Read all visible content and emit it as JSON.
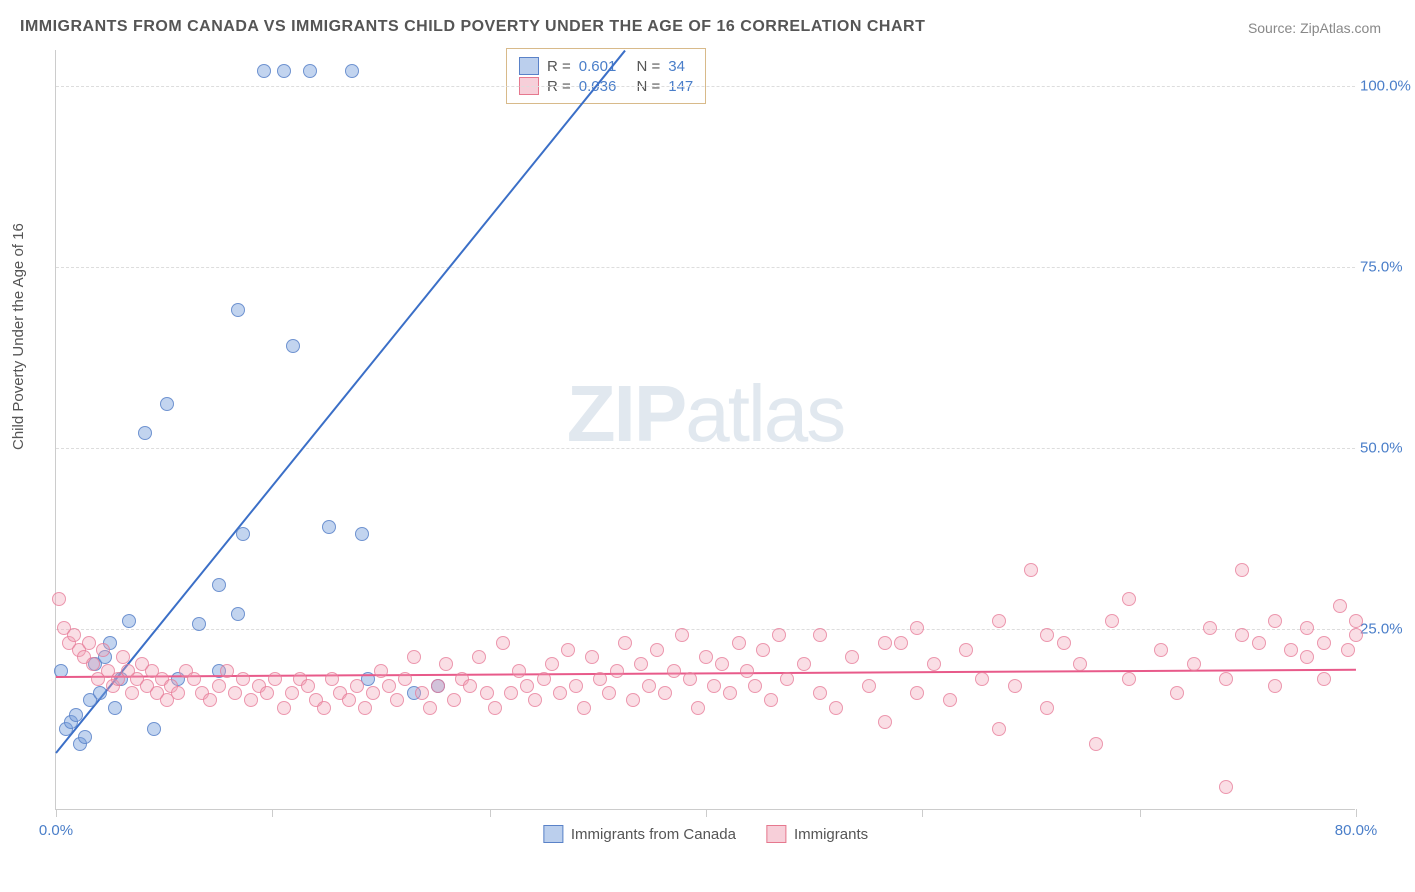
{
  "title": "IMMIGRANTS FROM CANADA VS IMMIGRANTS CHILD POVERTY UNDER THE AGE OF 16 CORRELATION CHART",
  "source_label": "Source:",
  "source_name": "ZipAtlas.com",
  "y_axis_label": "Child Poverty Under the Age of 16",
  "watermark_bold": "ZIP",
  "watermark_light": "atlas",
  "chart": {
    "type": "scatter_with_regression",
    "background_color": "#ffffff",
    "grid_color": "#dddddd",
    "axis_color": "#cccccc",
    "xlim": [
      0,
      80
    ],
    "ylim": [
      0,
      105
    ],
    "y_ticks": [
      {
        "value": 25,
        "label": "25.0%"
      },
      {
        "value": 50,
        "label": "50.0%"
      },
      {
        "value": 75,
        "label": "75.0%"
      },
      {
        "value": 100,
        "label": "100.0%"
      }
    ],
    "x_ticks": [
      {
        "value": 0,
        "label": "0.0%"
      },
      {
        "value": 13.3,
        "label": ""
      },
      {
        "value": 26.7,
        "label": ""
      },
      {
        "value": 40,
        "label": ""
      },
      {
        "value": 53.3,
        "label": ""
      },
      {
        "value": 66.7,
        "label": ""
      },
      {
        "value": 80,
        "label": "80.0%"
      }
    ],
    "series": [
      {
        "name": "Immigrants from Canada",
        "color_fill": "rgba(120,160,220,0.45)",
        "color_stroke": "#5a82c8",
        "marker_size": 14,
        "R": "0.601",
        "N": "34",
        "regression": {
          "x1": 0,
          "y1": 8,
          "x2": 35,
          "y2": 105,
          "color": "#3b6fc7"
        },
        "points": [
          [
            0.3,
            19
          ],
          [
            0.6,
            11
          ],
          [
            0.9,
            12
          ],
          [
            1.2,
            13
          ],
          [
            1.5,
            9
          ],
          [
            1.8,
            10
          ],
          [
            2.1,
            15
          ],
          [
            2.4,
            20
          ],
          [
            2.7,
            16
          ],
          [
            3.0,
            21
          ],
          [
            3.3,
            23
          ],
          [
            3.6,
            14
          ],
          [
            4.0,
            18
          ],
          [
            4.5,
            26
          ],
          [
            5.5,
            52
          ],
          [
            6.8,
            56
          ],
          [
            6.0,
            11
          ],
          [
            7.5,
            18
          ],
          [
            8.8,
            25.5
          ],
          [
            10.0,
            31
          ],
          [
            11.2,
            69
          ],
          [
            11.2,
            27
          ],
          [
            11.5,
            38
          ],
          [
            10.0,
            19
          ],
          [
            12.8,
            102
          ],
          [
            14.0,
            102
          ],
          [
            14.6,
            64
          ],
          [
            15.6,
            102
          ],
          [
            16.8,
            39
          ],
          [
            18.2,
            102
          ],
          [
            18.8,
            38
          ],
          [
            19.2,
            18
          ],
          [
            22.0,
            16
          ],
          [
            23.5,
            17
          ]
        ]
      },
      {
        "name": "Immigrants",
        "color_fill": "rgba(240,160,180,0.35)",
        "color_stroke": "#e6788e",
        "marker_size": 14,
        "R": "0.036",
        "N": "147",
        "regression": {
          "x1": 0,
          "y1": 18.5,
          "x2": 80,
          "y2": 19.5,
          "color": "#e85a8a"
        },
        "points": [
          [
            0.2,
            29
          ],
          [
            0.5,
            25
          ],
          [
            0.8,
            23
          ],
          [
            1.1,
            24
          ],
          [
            1.4,
            22
          ],
          [
            1.7,
            21
          ],
          [
            2.0,
            23
          ],
          [
            2.3,
            20
          ],
          [
            2.6,
            18
          ],
          [
            2.9,
            22
          ],
          [
            3.2,
            19
          ],
          [
            3.5,
            17
          ],
          [
            3.8,
            18
          ],
          [
            4.1,
            21
          ],
          [
            4.4,
            19
          ],
          [
            4.7,
            16
          ],
          [
            5.0,
            18
          ],
          [
            5.3,
            20
          ],
          [
            5.6,
            17
          ],
          [
            5.9,
            19
          ],
          [
            6.2,
            16
          ],
          [
            6.5,
            18
          ],
          [
            6.8,
            15
          ],
          [
            7.1,
            17
          ],
          [
            7.5,
            16
          ],
          [
            8.0,
            19
          ],
          [
            8.5,
            18
          ],
          [
            9.0,
            16
          ],
          [
            9.5,
            15
          ],
          [
            10.0,
            17
          ],
          [
            10.5,
            19
          ],
          [
            11.0,
            16
          ],
          [
            11.5,
            18
          ],
          [
            12.0,
            15
          ],
          [
            12.5,
            17
          ],
          [
            13.0,
            16
          ],
          [
            13.5,
            18
          ],
          [
            14.0,
            14
          ],
          [
            14.5,
            16
          ],
          [
            15.0,
            18
          ],
          [
            15.5,
            17
          ],
          [
            16.0,
            15
          ],
          [
            16.5,
            14
          ],
          [
            17.0,
            18
          ],
          [
            17.5,
            16
          ],
          [
            18.0,
            15
          ],
          [
            18.5,
            17
          ],
          [
            19.0,
            14
          ],
          [
            19.5,
            16
          ],
          [
            20.0,
            19
          ],
          [
            20.5,
            17
          ],
          [
            21.0,
            15
          ],
          [
            21.5,
            18
          ],
          [
            22.0,
            21
          ],
          [
            22.5,
            16
          ],
          [
            23.0,
            14
          ],
          [
            23.5,
            17
          ],
          [
            24.0,
            20
          ],
          [
            24.5,
            15
          ],
          [
            25.0,
            18
          ],
          [
            25.5,
            17
          ],
          [
            26.0,
            21
          ],
          [
            26.5,
            16
          ],
          [
            27.0,
            14
          ],
          [
            27.5,
            23
          ],
          [
            28.0,
            16
          ],
          [
            28.5,
            19
          ],
          [
            29.0,
            17
          ],
          [
            29.5,
            15
          ],
          [
            30.0,
            18
          ],
          [
            30.5,
            20
          ],
          [
            31.0,
            16
          ],
          [
            31.5,
            22
          ],
          [
            32.0,
            17
          ],
          [
            32.5,
            14
          ],
          [
            33.0,
            21
          ],
          [
            33.5,
            18
          ],
          [
            34.0,
            16
          ],
          [
            34.5,
            19
          ],
          [
            35.0,
            23
          ],
          [
            35.5,
            15
          ],
          [
            36.0,
            20
          ],
          [
            36.5,
            17
          ],
          [
            37.0,
            22
          ],
          [
            37.5,
            16
          ],
          [
            38.0,
            19
          ],
          [
            38.5,
            24
          ],
          [
            39.0,
            18
          ],
          [
            39.5,
            14
          ],
          [
            40.0,
            21
          ],
          [
            40.5,
            17
          ],
          [
            41.0,
            20
          ],
          [
            41.5,
            16
          ],
          [
            42.0,
            23
          ],
          [
            42.5,
            19
          ],
          [
            43.0,
            17
          ],
          [
            43.5,
            22
          ],
          [
            44.0,
            15
          ],
          [
            44.5,
            24
          ],
          [
            45.0,
            18
          ],
          [
            46.0,
            20
          ],
          [
            47.0,
            16
          ],
          [
            47.0,
            24
          ],
          [
            48.0,
            14
          ],
          [
            49.0,
            21
          ],
          [
            50.0,
            17
          ],
          [
            51.0,
            12
          ],
          [
            51.0,
            23
          ],
          [
            52.0,
            23
          ],
          [
            53.0,
            16
          ],
          [
            53.0,
            25
          ],
          [
            54.0,
            20
          ],
          [
            55.0,
            15
          ],
          [
            56.0,
            22
          ],
          [
            57.0,
            18
          ],
          [
            58.0,
            11
          ],
          [
            58.0,
            26
          ],
          [
            59.0,
            17
          ],
          [
            60.0,
            33
          ],
          [
            61.0,
            14
          ],
          [
            61.0,
            24
          ],
          [
            62.0,
            23
          ],
          [
            63.0,
            20
          ],
          [
            64.0,
            9
          ],
          [
            65.0,
            26
          ],
          [
            66.0,
            18
          ],
          [
            66.0,
            29
          ],
          [
            68.0,
            22
          ],
          [
            69.0,
            16
          ],
          [
            70.0,
            20
          ],
          [
            71.0,
            25
          ],
          [
            72.0,
            18
          ],
          [
            72.0,
            3
          ],
          [
            73.0,
            24
          ],
          [
            73.0,
            33
          ],
          [
            74.0,
            23
          ],
          [
            75.0,
            17
          ],
          [
            75.0,
            26
          ],
          [
            76.0,
            22
          ],
          [
            77.0,
            21
          ],
          [
            77.0,
            25
          ],
          [
            78.0,
            23
          ],
          [
            78.0,
            18
          ],
          [
            79.0,
            28
          ],
          [
            79.5,
            22
          ],
          [
            80.0,
            24
          ],
          [
            80.0,
            26
          ]
        ]
      }
    ],
    "legend_box": {
      "r_label": "R =",
      "n_label": "N ="
    },
    "bottom_legend": [
      {
        "swatch": "blue",
        "label": "Immigrants from Canada"
      },
      {
        "swatch": "pink",
        "label": "Immigrants"
      }
    ]
  }
}
